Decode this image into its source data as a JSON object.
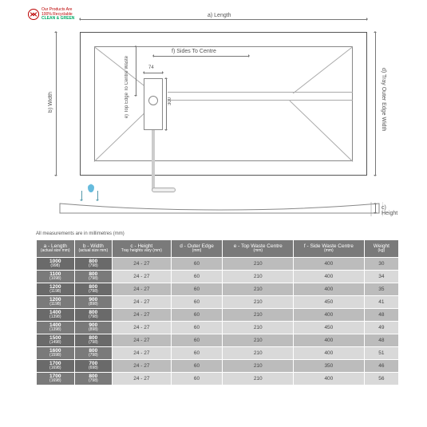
{
  "badge": {
    "line1": "Our Products Are",
    "line2": "100% Recyclable",
    "line3": "CLEAN & GREEN"
  },
  "diagram": {
    "labels": {
      "a": "a) Length",
      "b": "b) Width",
      "c": "c) Height",
      "d": "d) Tray Outer Edge Width",
      "e": "e) Top Edge To Centre Waste",
      "f": "f) Sides To Centre",
      "dim74": "74",
      "dim300": "300"
    },
    "colors": {
      "line": "#777",
      "box": "#555",
      "fold": "#aaa",
      "water": "#6bd",
      "arrow": "#59a"
    }
  },
  "note": "All measurements are in millimetres (mm)",
  "table": {
    "header_bg": "#7a7a7a",
    "even_bg": "#d9d9d9",
    "odd_bg": "#bcbcbc",
    "columns": [
      {
        "title": "a - Length",
        "sub": "(actual size mm)"
      },
      {
        "title": "b - Width",
        "sub": "(actual size mm)"
      },
      {
        "title": "c - Height",
        "sub": "Tray heights vary (mm)"
      },
      {
        "title": "d - Outer Edge",
        "sub": "(mm)"
      },
      {
        "title": "e - Top Waste Centre",
        "sub": "(mm)"
      },
      {
        "title": "f - Side Waste Centre",
        "sub": "(mm)"
      },
      {
        "title": "Weight",
        "sub": "(kg)"
      }
    ],
    "rows": [
      {
        "a": "1000",
        "as": "(998)",
        "b": "800",
        "bs": "(798)",
        "c": "24 - 27",
        "d": "60",
        "e": "210",
        "f": "400",
        "w": "30"
      },
      {
        "a": "1100",
        "as": "(1098)",
        "b": "800",
        "bs": "(798)",
        "c": "24 - 27",
        "d": "60",
        "e": "210",
        "f": "400",
        "w": "34"
      },
      {
        "a": "1200",
        "as": "(1198)",
        "b": "800",
        "bs": "(798)",
        "c": "24 - 27",
        "d": "60",
        "e": "210",
        "f": "400",
        "w": "35"
      },
      {
        "a": "1200",
        "as": "(1198)",
        "b": "900",
        "bs": "(898)",
        "c": "24 - 27",
        "d": "60",
        "e": "210",
        "f": "450",
        "w": "41"
      },
      {
        "a": "1400",
        "as": "(1398)",
        "b": "800",
        "bs": "(798)",
        "c": "24 - 27",
        "d": "60",
        "e": "210",
        "f": "400",
        "w": "48"
      },
      {
        "a": "1400",
        "as": "(1398)",
        "b": "900",
        "bs": "(898)",
        "c": "24 - 27",
        "d": "60",
        "e": "210",
        "f": "450",
        "w": "49"
      },
      {
        "a": "1500",
        "as": "(1498)",
        "b": "800",
        "bs": "(798)",
        "c": "24 - 27",
        "d": "60",
        "e": "210",
        "f": "400",
        "w": "48"
      },
      {
        "a": "1600",
        "as": "(1598)",
        "b": "800",
        "bs": "(798)",
        "c": "24 - 27",
        "d": "60",
        "e": "210",
        "f": "400",
        "w": "51"
      },
      {
        "a": "1700",
        "as": "(1698)",
        "b": "700",
        "bs": "(698)",
        "c": "24 - 27",
        "d": "60",
        "e": "210",
        "f": "350",
        "w": "46"
      },
      {
        "a": "1700",
        "as": "(1698)",
        "b": "800",
        "bs": "(798)",
        "c": "24 - 27",
        "d": "60",
        "e": "210",
        "f": "400",
        "w": "56"
      }
    ]
  }
}
